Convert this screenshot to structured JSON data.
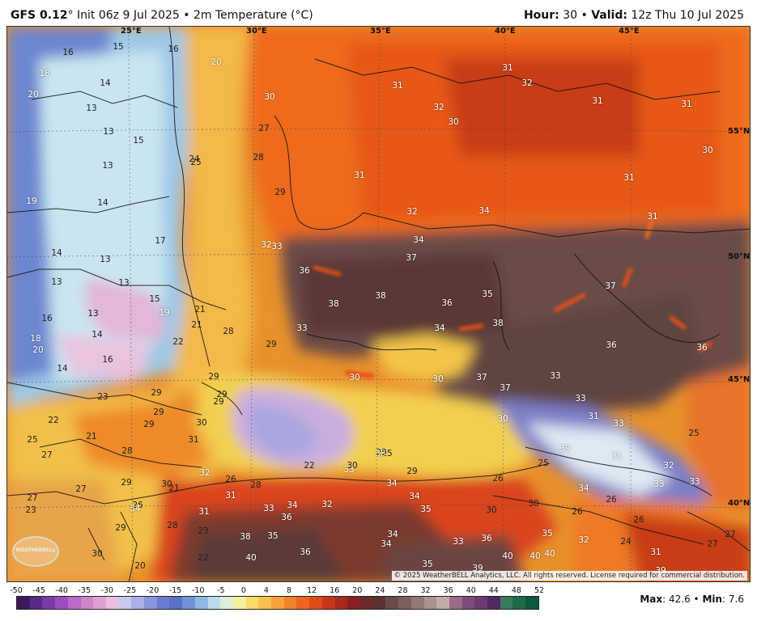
{
  "header": {
    "model": "GFS 0.12",
    "resolution_suffix": "° Init 06z 9 Jul 2025 • 2m Temperature (°C)",
    "hour_label": "Hour:",
    "hour_value": " 30 • ",
    "valid_label": "Valid:",
    "valid_value": " 12z Thu 10 Jul 2025"
  },
  "map": {
    "longitudes": [
      "25°E",
      "30°E",
      "35°E",
      "40°E",
      "45°E"
    ],
    "latitudes": [
      "55°N",
      "50°N",
      "45°N",
      "40°N"
    ],
    "copyright": "© 2025 WeatherBELL Analytics, LLC. All rights reserved. License required for commercial distribution.",
    "logo_text": "WEATHERBELL",
    "temperature_labels": [
      {
        "v": "16",
        "dark": true
      },
      {
        "v": "15",
        "dark": true
      },
      {
        "v": "16",
        "dark": true
      },
      {
        "v": "18"
      },
      {
        "v": "20"
      },
      {
        "v": "14",
        "dark": true
      },
      {
        "v": "20"
      },
      {
        "v": "13",
        "dark": true
      },
      {
        "v": "13",
        "dark": true
      },
      {
        "v": "15",
        "dark": true
      },
      {
        "v": "13",
        "dark": true
      },
      {
        "v": "19"
      },
      {
        "v": "14",
        "dark": true
      },
      {
        "v": "17",
        "dark": true
      },
      {
        "v": "14",
        "dark": true
      },
      {
        "v": "13",
        "dark": true
      },
      {
        "v": "13",
        "dark": true
      },
      {
        "v": "13",
        "dark": true
      },
      {
        "v": "15",
        "dark": true
      },
      {
        "v": "16",
        "dark": true
      },
      {
        "v": "13",
        "dark": true
      },
      {
        "v": "19"
      },
      {
        "v": "18"
      },
      {
        "v": "14",
        "dark": true
      },
      {
        "v": "20"
      },
      {
        "v": "16",
        "dark": true
      },
      {
        "v": "14",
        "dark": true
      },
      {
        "v": "21",
        "dark": true
      },
      {
        "v": "21",
        "dark": true
      },
      {
        "v": "22",
        "dark": true
      },
      {
        "v": "30"
      },
      {
        "v": "27",
        "dark": true
      },
      {
        "v": "28",
        "dark": true
      },
      {
        "v": "24",
        "dark": true
      },
      {
        "v": "25",
        "dark": true
      },
      {
        "v": "29",
        "dark": true
      },
      {
        "v": "32"
      },
      {
        "v": "33"
      },
      {
        "v": "28",
        "dark": true
      },
      {
        "v": "29",
        "dark": true
      },
      {
        "v": "33"
      },
      {
        "v": "29",
        "dark": true
      },
      {
        "v": "29",
        "dark": true
      },
      {
        "v": "31"
      },
      {
        "v": "31"
      },
      {
        "v": "32"
      },
      {
        "v": "30"
      },
      {
        "v": "32"
      },
      {
        "v": "31"
      },
      {
        "v": "31"
      },
      {
        "v": "31"
      },
      {
        "v": "30"
      },
      {
        "v": "31"
      },
      {
        "v": "32"
      },
      {
        "v": "34"
      },
      {
        "v": "31"
      },
      {
        "v": "34"
      },
      {
        "v": "37"
      },
      {
        "v": "36"
      },
      {
        "v": "38"
      },
      {
        "v": "38"
      },
      {
        "v": "36"
      },
      {
        "v": "35"
      },
      {
        "v": "34"
      },
      {
        "v": "38"
      },
      {
        "v": "37"
      },
      {
        "v": "36"
      },
      {
        "v": "36"
      },
      {
        "v": "30"
      },
      {
        "v": "30"
      },
      {
        "v": "37"
      },
      {
        "v": "37"
      },
      {
        "v": "33"
      },
      {
        "v": "33"
      },
      {
        "v": "31"
      },
      {
        "v": "33"
      },
      {
        "v": "30"
      },
      {
        "v": "25",
        "dark": true
      },
      {
        "v": "23",
        "dark": true
      },
      {
        "v": "29",
        "dark": true
      },
      {
        "v": "29",
        "dark": true
      },
      {
        "v": "29",
        "dark": true
      },
      {
        "v": "22",
        "dark": true
      },
      {
        "v": "25",
        "dark": true
      },
      {
        "v": "27",
        "dark": true
      },
      {
        "v": "21",
        "dark": true
      },
      {
        "v": "28",
        "dark": true
      },
      {
        "v": "30",
        "dark": true
      },
      {
        "v": "31",
        "dark": true
      },
      {
        "v": "29",
        "dark": true
      },
      {
        "v": "25",
        "dark": true
      },
      {
        "v": "22",
        "dark": true
      },
      {
        "v": "25",
        "dark": true
      },
      {
        "v": "29",
        "dark": true
      },
      {
        "v": "26",
        "dark": true
      },
      {
        "v": "25",
        "dark": true
      },
      {
        "v": "39"
      },
      {
        "v": "31"
      },
      {
        "v": "32"
      },
      {
        "v": "33"
      },
      {
        "v": "33"
      },
      {
        "v": "33"
      },
      {
        "v": "28",
        "dark": true
      },
      {
        "v": "26",
        "dark": true
      },
      {
        "v": "27",
        "dark": true
      },
      {
        "v": "29",
        "dark": true
      },
      {
        "v": "32"
      },
      {
        "v": "27",
        "dark": true
      },
      {
        "v": "30",
        "dark": true
      },
      {
        "v": "26",
        "dark": true
      },
      {
        "v": "31"
      },
      {
        "v": "31"
      },
      {
        "v": "28",
        "dark": true
      },
      {
        "v": "33"
      },
      {
        "v": "36"
      },
      {
        "v": "34"
      },
      {
        "v": "21",
        "dark": true
      },
      {
        "v": "34"
      },
      {
        "v": "32"
      },
      {
        "v": "34"
      },
      {
        "v": "35"
      },
      {
        "v": "30",
        "dark": true
      },
      {
        "v": "30",
        "dark": true
      },
      {
        "v": "26",
        "dark": true
      },
      {
        "v": "26",
        "dark": true
      },
      {
        "v": "34"
      },
      {
        "v": "26",
        "dark": true
      },
      {
        "v": "34"
      },
      {
        "v": "29",
        "dark": true
      },
      {
        "v": "23",
        "dark": true
      },
      {
        "v": "38"
      },
      {
        "v": "35"
      },
      {
        "v": "34"
      },
      {
        "v": "34"
      },
      {
        "v": "33"
      },
      {
        "v": "36"
      },
      {
        "v": "35"
      },
      {
        "v": "32"
      },
      {
        "v": "24",
        "dark": true
      },
      {
        "v": "31"
      },
      {
        "v": "27",
        "dark": true
      },
      {
        "v": "22",
        "dark": true
      },
      {
        "v": "40"
      },
      {
        "v": "36"
      },
      {
        "v": "35"
      },
      {
        "v": "39"
      },
      {
        "v": "40"
      },
      {
        "v": "40"
      },
      {
        "v": "40"
      },
      {
        "v": "39"
      },
      {
        "v": "30",
        "dark": true
      },
      {
        "v": "20",
        "dark": true
      },
      {
        "v": "23",
        "dark": true
      },
      {
        "v": "27",
        "dark": true
      },
      {
        "v": "30",
        "dark": true
      },
      {
        "v": "33"
      },
      {
        "v": "25",
        "dark": true
      }
    ]
  },
  "colorbar": {
    "ticks": [
      "-50",
      "-45",
      "-40",
      "-35",
      "-30",
      "-25",
      "-20",
      "-15",
      "-10",
      "-5",
      "0",
      "4",
      "8",
      "12",
      "16",
      "20",
      "24",
      "28",
      "32",
      "36",
      "40",
      "44",
      "48",
      "52"
    ],
    "colors": [
      "#3b1a5a",
      "#5a2a86",
      "#7a3ba6",
      "#9a4ebd",
      "#b86ac8",
      "#cf86c9",
      "#dda0d0",
      "#e8bfe0",
      "#c9c9ef",
      "#a8aee6",
      "#8a94dc",
      "#6c7bd0",
      "#5a6fc8",
      "#6f93d6",
      "#8fb8e2",
      "#b8dcee",
      "#dcefd6",
      "#f0f0a0",
      "#f7dc6a",
      "#f8c04a",
      "#f7a13a",
      "#f4822c",
      "#ee6420",
      "#e04a18",
      "#c8361a",
      "#a8281c",
      "#882020",
      "#6d2a2a",
      "#5a3232",
      "#6a4a48",
      "#7d605c",
      "#927a74",
      "#a8948c",
      "#bfaea5",
      "#9a6a86",
      "#7e4a7a",
      "#6a3a70",
      "#4f2a64",
      "#3a7a5a",
      "#1f6a48",
      "#0d5a3a"
    ]
  },
  "stats": {
    "max_label": "Max",
    "max_value": ": 42.6 • ",
    "min_label": "Min",
    "min_value": ": 7.6"
  }
}
